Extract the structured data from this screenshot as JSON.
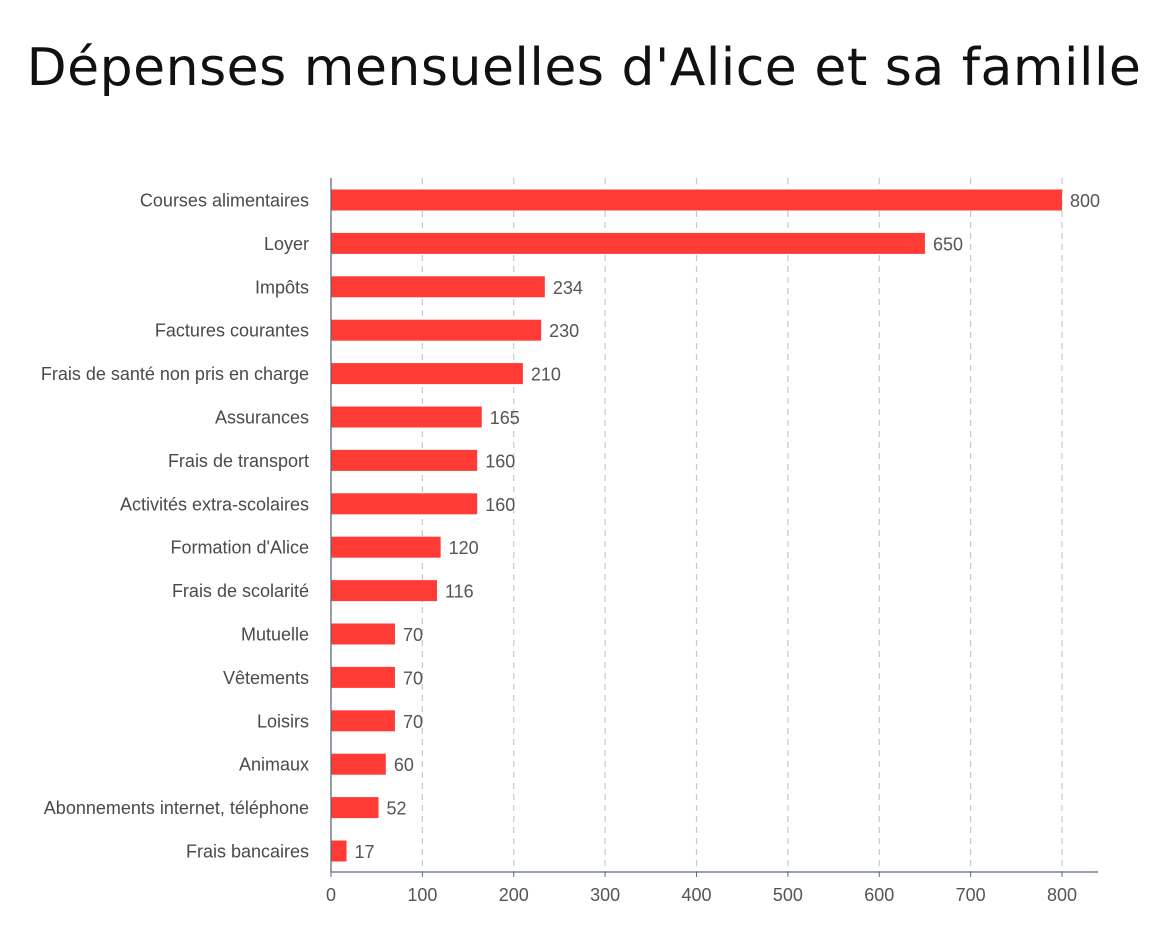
{
  "chart_data": {
    "type": "bar",
    "orientation": "horizontal",
    "title": "Dépenses mensuelles d'Alice et sa famille",
    "xlabel": "",
    "ylabel": "",
    "categories": [
      "Courses alimentaires",
      "Loyer",
      "Impôts",
      "Factures courantes",
      "Frais de santé non pris en charge",
      "Assurances",
      "Frais de transport",
      "Activités extra-scolaires",
      "Formation d'Alice",
      "Frais de scolarité",
      "Mutuelle",
      "Vêtements",
      "Loisirs",
      "Animaux",
      "Abonnements internet, téléphone",
      "Frais bancaires"
    ],
    "values": [
      800,
      650,
      234,
      230,
      210,
      165,
      160,
      160,
      120,
      116,
      70,
      70,
      70,
      60,
      52,
      17
    ],
    "xlim": [
      0,
      840
    ],
    "xticks": [
      0,
      100,
      200,
      300,
      400,
      500,
      600,
      700,
      800
    ],
    "grid": "vertical-dashed",
    "legend": "none",
    "colors": {
      "bar": "#ff3b36",
      "grid": "#c8c8c8",
      "axis": "#5a6b7a",
      "title": "#111111"
    }
  }
}
